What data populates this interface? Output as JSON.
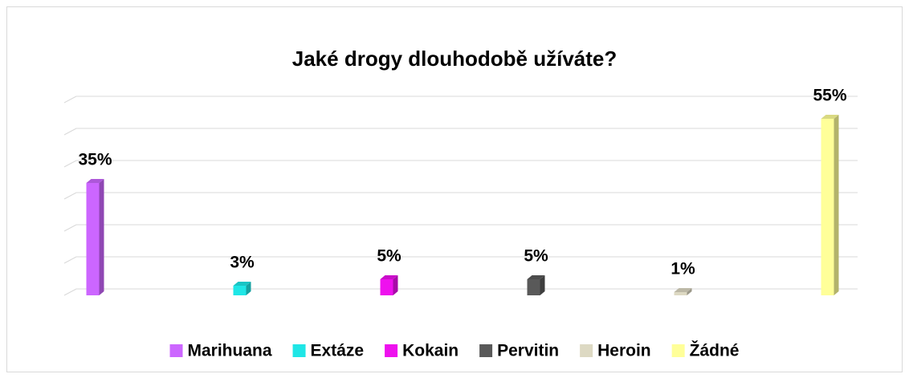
{
  "chart_data": {
    "type": "bar3d",
    "title": "Jaké drogy dlouhodobě užíváte?",
    "series": [
      {
        "name": "Marihuana",
        "color": "#cc66ff",
        "values": [
          35
        ],
        "value_labels": [
          "35%"
        ]
      },
      {
        "name": "Extáze",
        "color": "#1fe6e6",
        "values": [
          3
        ],
        "value_labels": [
          "3%"
        ]
      },
      {
        "name": "Kokain",
        "color": "#ee11ee",
        "values": [
          5
        ],
        "value_labels": [
          "5%"
        ]
      },
      {
        "name": "Pervitin",
        "color": "#595959",
        "values": [
          5
        ],
        "value_labels": [
          "5%"
        ]
      },
      {
        "name": "Heroin",
        "color": "#ddd9c3",
        "values": [
          1
        ],
        "value_labels": [
          "1%"
        ]
      },
      {
        "name": "Žádné",
        "color": "#ffff99",
        "values": [
          55
        ],
        "value_labels": [
          "55%"
        ]
      }
    ],
    "ylim": [
      0,
      60
    ],
    "yticks": [
      0,
      10,
      20,
      30,
      40,
      50,
      60
    ],
    "grid": true,
    "legend": "bottom"
  }
}
